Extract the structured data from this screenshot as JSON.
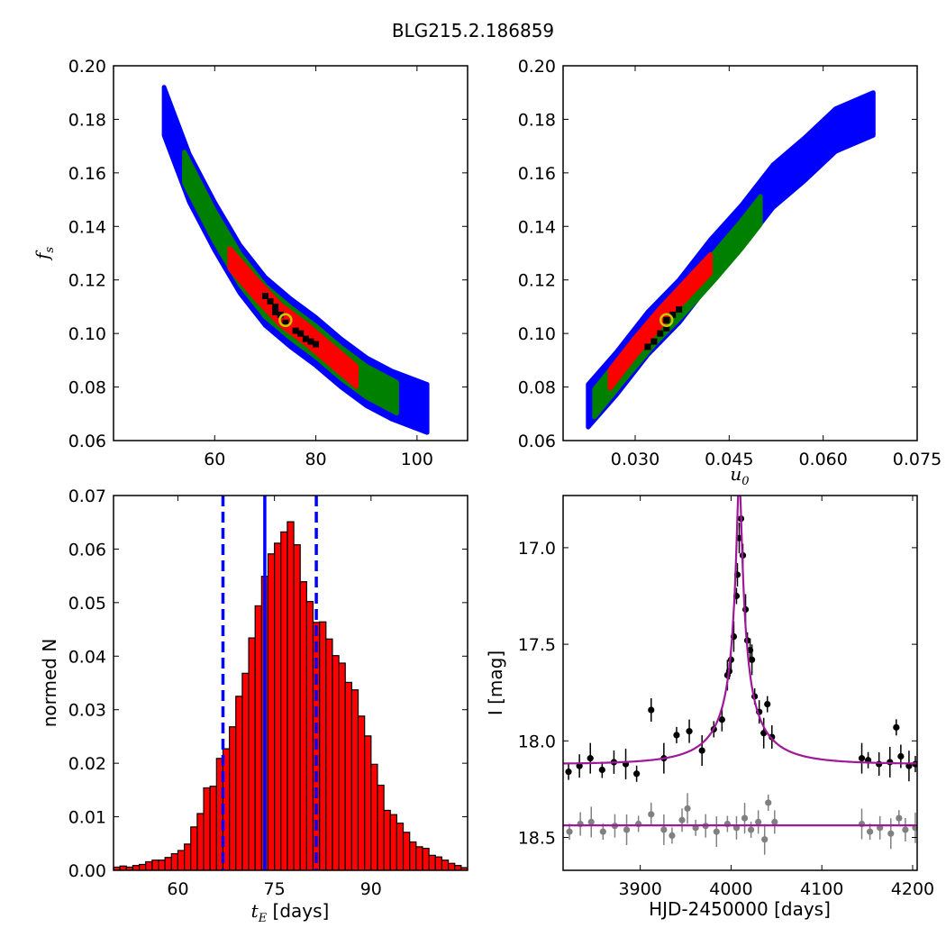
{
  "title": "BLG215.2.186859",
  "chart_data": [
    {
      "id": "fs_vs_tE",
      "type": "heatmap",
      "title": "",
      "xlabel": "",
      "ylabel": "f_s",
      "xlim": [
        40,
        110
      ],
      "ylim": [
        0.06,
        0.2
      ],
      "xticks": [
        "60",
        "80",
        "100"
      ],
      "yticks": [
        "0.06",
        "0.08",
        "0.10",
        "0.12",
        "0.14",
        "0.16",
        "0.18",
        "0.20"
      ],
      "regions": [
        {
          "name": "3sigma",
          "color": "#0000ff",
          "halfwidth": 0.009,
          "path": [
            [
              50,
              0.183
            ],
            [
              55,
              0.158
            ],
            [
              60,
              0.14
            ],
            [
              65,
              0.124
            ],
            [
              70,
              0.112
            ],
            [
              75,
              0.104
            ],
            [
              80,
              0.097
            ],
            [
              85,
              0.089
            ],
            [
              90,
              0.082
            ],
            [
              95,
              0.077
            ],
            [
              102,
              0.072
            ]
          ]
        },
        {
          "name": "2sigma",
          "color": "#008000",
          "halfwidth": 0.0058,
          "path": [
            [
              54,
              0.162
            ],
            [
              60,
              0.14
            ],
            [
              65,
              0.124
            ],
            [
              70,
              0.112
            ],
            [
              75,
              0.104
            ],
            [
              80,
              0.097
            ],
            [
              85,
              0.089
            ],
            [
              90,
              0.082
            ],
            [
              96,
              0.076
            ]
          ]
        },
        {
          "name": "1sigma",
          "color": "#ff0000",
          "halfwidth": 0.0038,
          "path": [
            [
              63,
              0.128
            ],
            [
              68,
              0.117
            ],
            [
              73,
              0.107
            ],
            [
              78,
              0.1
            ],
            [
              83,
              0.092
            ],
            [
              88,
              0.084
            ]
          ]
        }
      ],
      "best_cells": [
        [
          70,
          0.114
        ],
        [
          71,
          0.112
        ],
        [
          72,
          0.11
        ],
        [
          72,
          0.108
        ],
        [
          73,
          0.107
        ],
        [
          74,
          0.104
        ],
        [
          76,
          0.101
        ],
        [
          77,
          0.1
        ],
        [
          78,
          0.098
        ],
        [
          79,
          0.097
        ],
        [
          80,
          0.096
        ]
      ],
      "marker": {
        "x": 74,
        "y": 0.105,
        "color": "#c8c800"
      }
    },
    {
      "id": "fs_vs_u0",
      "type": "heatmap",
      "title": "",
      "xlabel": "u_0",
      "ylabel": "",
      "xlim": [
        0.0185,
        0.075
      ],
      "ylim": [
        0.06,
        0.2
      ],
      "xticks": [
        "0.030",
        "0.045",
        "0.060",
        "0.075"
      ],
      "yticks": [
        "0.06",
        "0.08",
        "0.10",
        "0.12",
        "0.14",
        "0.16",
        "0.18",
        "0.20"
      ],
      "regions": [
        {
          "name": "3sigma",
          "color": "#0000ff",
          "halfwidth": 0.008,
          "path": [
            [
              0.0225,
              0.073
            ],
            [
              0.027,
              0.085
            ],
            [
              0.032,
              0.1
            ],
            [
              0.037,
              0.112
            ],
            [
              0.042,
              0.127
            ],
            [
              0.047,
              0.14
            ],
            [
              0.052,
              0.155
            ],
            [
              0.057,
              0.165
            ],
            [
              0.062,
              0.176
            ],
            [
              0.068,
              0.182
            ]
          ]
        },
        {
          "name": "2sigma",
          "color": "#008000",
          "halfwidth": 0.0052,
          "path": [
            [
              0.0235,
              0.074
            ],
            [
              0.028,
              0.087
            ],
            [
              0.033,
              0.101
            ],
            [
              0.038,
              0.113
            ],
            [
              0.043,
              0.126
            ],
            [
              0.047,
              0.137
            ],
            [
              0.05,
              0.146
            ]
          ]
        },
        {
          "name": "1sigma",
          "color": "#ff0000",
          "halfwidth": 0.0035,
          "path": [
            [
              0.026,
              0.083
            ],
            [
              0.03,
              0.095
            ],
            [
              0.034,
              0.106
            ],
            [
              0.038,
              0.116
            ],
            [
              0.042,
              0.126
            ]
          ]
        }
      ],
      "best_cells": [
        [
          0.032,
          0.095
        ],
        [
          0.033,
          0.097
        ],
        [
          0.034,
          0.1
        ],
        [
          0.035,
          0.102
        ],
        [
          0.035,
          0.105
        ],
        [
          0.036,
          0.107
        ],
        [
          0.037,
          0.109
        ]
      ],
      "marker": {
        "x": 0.035,
        "y": 0.105,
        "color": "#c8c800"
      }
    },
    {
      "id": "tE_histogram",
      "type": "bar",
      "title": "",
      "xlabel": "t_E [days]",
      "ylabel": "normed N",
      "xlim": [
        50,
        105
      ],
      "ylim": [
        0,
        0.07
      ],
      "xticks": [
        "60",
        "75",
        "90"
      ],
      "yticks": [
        "0.00",
        "0.01",
        "0.02",
        "0.03",
        "0.04",
        "0.05",
        "0.06",
        "0.07"
      ],
      "bin_start": 50,
      "bin_width": 1,
      "values": [
        0.0006,
        0.0008,
        0.0006,
        0.0009,
        0.0011,
        0.0016,
        0.0019,
        0.0019,
        0.0024,
        0.0031,
        0.0037,
        0.0049,
        0.0081,
        0.0106,
        0.0154,
        0.0157,
        0.0209,
        0.0227,
        0.0268,
        0.0325,
        0.0368,
        0.0434,
        0.0494,
        0.0549,
        0.0591,
        0.0611,
        0.0632,
        0.0651,
        0.0608,
        0.0539,
        0.0502,
        0.0463,
        0.0464,
        0.0432,
        0.0401,
        0.0387,
        0.0351,
        0.0337,
        0.0288,
        0.0251,
        0.0198,
        0.0159,
        0.0112,
        0.0104,
        0.0088,
        0.0071,
        0.0053,
        0.0044,
        0.0041,
        0.0028,
        0.0025,
        0.0019,
        0.0013,
        0.0009,
        0.0005
      ],
      "bar_color": "#ff0000",
      "median": 73.5,
      "bounds": [
        67,
        81.5
      ],
      "line_color": "#0000ff"
    },
    {
      "id": "light_curve",
      "type": "scatter",
      "title": "",
      "xlabel": "HJD-2450000 [days]",
      "ylabel": "I [mag]",
      "xlim": [
        3815,
        4205
      ],
      "ylim": [
        18.67,
        16.73
      ],
      "xticks": [
        "3900",
        "4000",
        "4100",
        "4200"
      ],
      "yticks": [
        "17.0",
        "17.5",
        "18.0",
        "18.5"
      ],
      "model": {
        "t0": 4009,
        "tE": 73.5,
        "u0": 0.035,
        "fs": 0.105,
        "ibase": 18.12,
        "color": "#a0189a"
      },
      "series": [
        {
          "color": "#000000",
          "points": [
            [
              3821,
              18.16
            ],
            [
              3833,
              18.13
            ],
            [
              3845,
              18.09
            ],
            [
              3858,
              18.15
            ],
            [
              3871,
              18.11
            ],
            [
              3884,
              18.12
            ],
            [
              3896,
              18.17
            ],
            [
              3912,
              17.84
            ],
            [
              3926,
              18.09
            ],
            [
              3940,
              17.97
            ],
            [
              3954,
              17.95
            ],
            [
              3968,
              18.05
            ],
            [
              3981,
              17.94
            ],
            [
              3990,
              17.89
            ],
            [
              3996,
              17.66
            ],
            [
              3998,
              17.64
            ],
            [
              4000,
              17.58
            ],
            [
              4003,
              17.46
            ],
            [
              4006,
              17.25
            ],
            [
              4007,
              17.14
            ],
            [
              4009,
              16.95
            ],
            [
              4011,
              16.85
            ],
            [
              4013,
              17.04
            ],
            [
              4016,
              17.32
            ],
            [
              4018,
              17.48
            ],
            [
              4021,
              17.53
            ],
            [
              4023,
              17.58
            ],
            [
              4026,
              17.77
            ],
            [
              4031,
              17.85
            ],
            [
              4036,
              17.96
            ],
            [
              4040,
              17.81
            ],
            [
              4045,
              17.98
            ],
            [
              4144,
              18.09
            ],
            [
              4151,
              18.1
            ],
            [
              4163,
              18.12
            ],
            [
              4175,
              18.11
            ],
            [
              4182,
              17.93
            ],
            [
              4187,
              18.08
            ],
            [
              4196,
              18.13
            ],
            [
              4203,
              18.12
            ]
          ]
        },
        {
          "color": "#808080",
          "points": [
            [
              3822,
              18.47
            ],
            [
              3834,
              18.43
            ],
            [
              3846,
              18.42
            ],
            [
              3859,
              18.47
            ],
            [
              3872,
              18.44
            ],
            [
              3885,
              18.46
            ],
            [
              3898,
              18.43
            ],
            [
              3912,
              18.38
            ],
            [
              3926,
              18.46
            ],
            [
              3935,
              18.49
            ],
            [
              3946,
              18.41
            ],
            [
              3952,
              18.35
            ],
            [
              3961,
              18.45
            ],
            [
              3972,
              18.44
            ],
            [
              3984,
              18.47
            ],
            [
              3996,
              18.43
            ],
            [
              4006,
              18.45
            ],
            [
              4015,
              18.4
            ],
            [
              4022,
              18.46
            ],
            [
              4030,
              18.42
            ],
            [
              4037,
              18.51
            ],
            [
              4041,
              18.32
            ],
            [
              4048,
              18.42
            ],
            [
              4144,
              18.43
            ],
            [
              4153,
              18.47
            ],
            [
              4164,
              18.45
            ],
            [
              4176,
              18.48
            ],
            [
              4185,
              18.4
            ],
            [
              4192,
              18.46
            ],
            [
              4203,
              18.45
            ]
          ]
        }
      ]
    }
  ]
}
